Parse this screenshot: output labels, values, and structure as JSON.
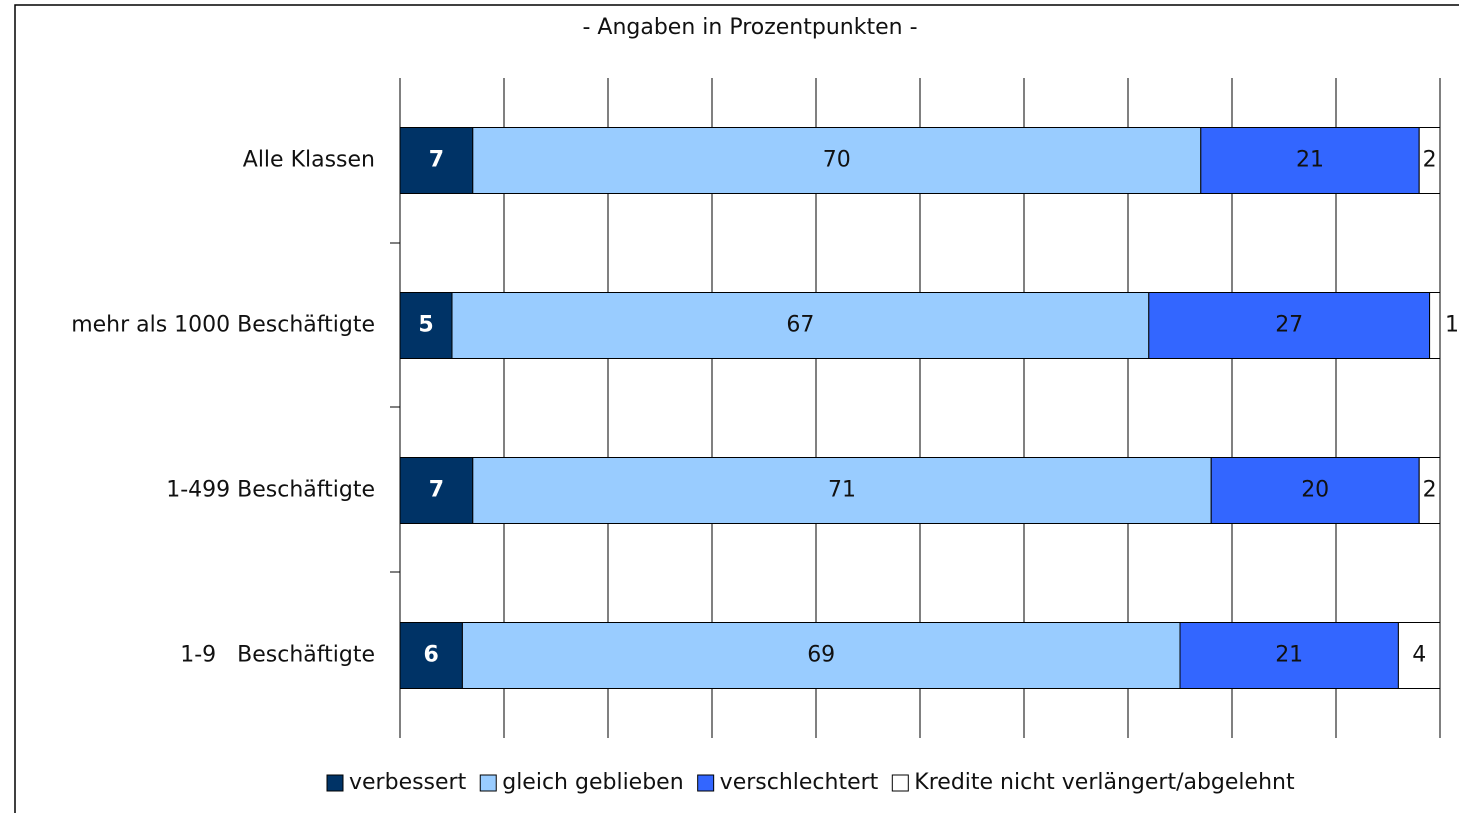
{
  "chart_data": {
    "type": "stacked_barh",
    "title": "- Angaben in Prozentpunkten -",
    "categories": [
      "Alle Klassen",
      "mehr als 1000 Beschäftigte",
      "1-499 Beschäftigte",
      "1-9   Beschäftigte"
    ],
    "series": [
      {
        "name": "verbessert",
        "color": "#003366",
        "values": [
          7,
          5,
          7,
          6
        ]
      },
      {
        "name": "gleich geblieben",
        "color": "#99ccff",
        "values": [
          70,
          67,
          71,
          69
        ]
      },
      {
        "name": "verschlechtert",
        "color": "#3366ff",
        "values": [
          21,
          27,
          20,
          21
        ]
      },
      {
        "name": "Kredite nicht verlängert/abgelehnt",
        "color": "#ffffff",
        "values": [
          2,
          1,
          2,
          4
        ]
      }
    ],
    "xlim": [
      0,
      100
    ],
    "xticks": [
      0,
      10,
      20,
      30,
      40,
      50,
      60,
      70,
      80,
      90,
      100
    ],
    "grid": true,
    "legend": "bottom"
  }
}
